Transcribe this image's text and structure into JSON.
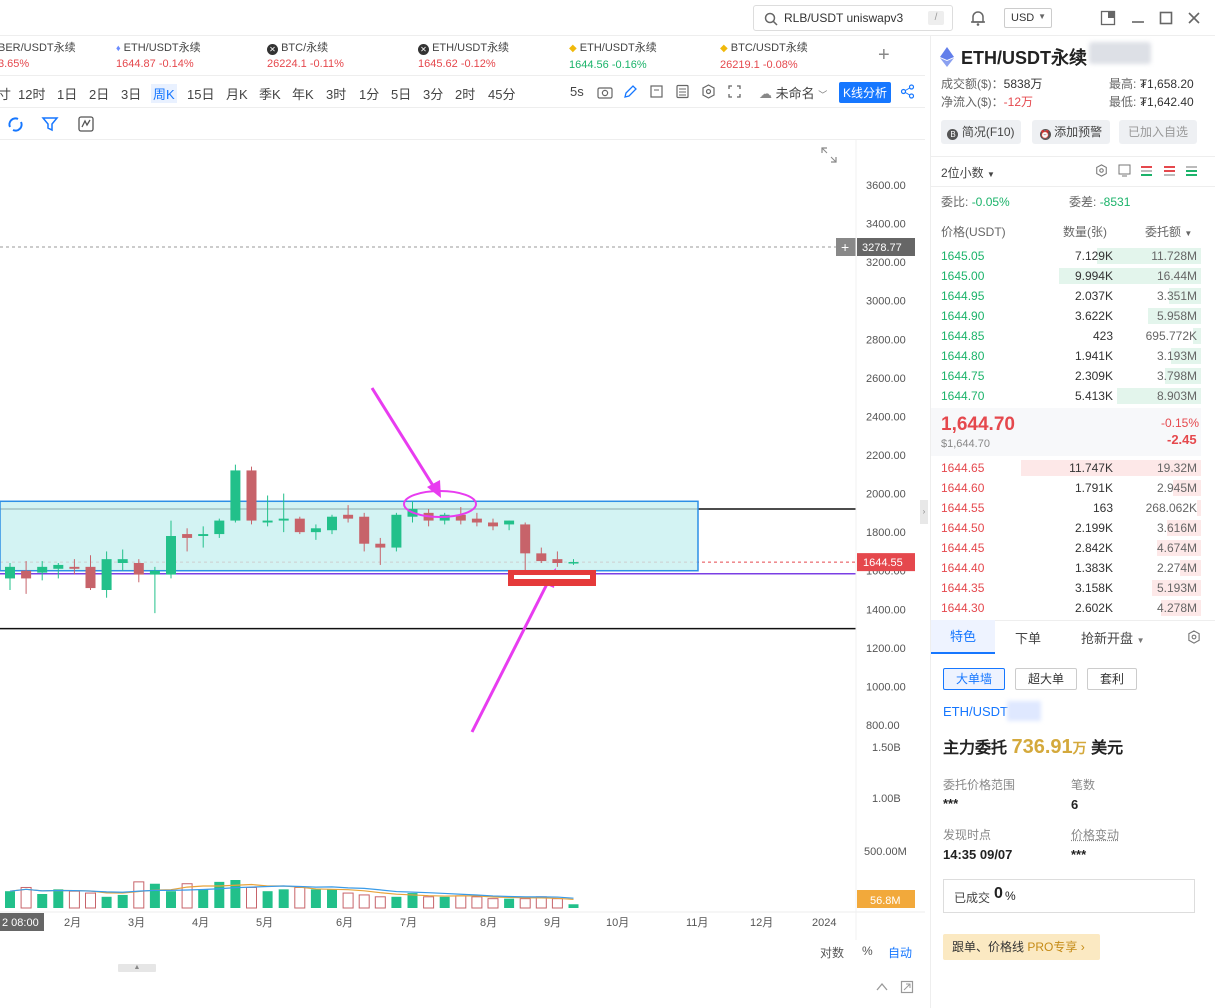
{
  "topbar": {
    "search_value": "RLB/USDT uniswapv3",
    "search_shortcut": "/",
    "currency": "USD"
  },
  "tickers": [
    {
      "name": "BER/USDT永续",
      "price": "",
      "change": "3.65%",
      "color": "red"
    },
    {
      "name": "ETH/USDT永续",
      "price": "1644.87",
      "change": "-0.14%",
      "color": "red"
    },
    {
      "name": "BTC/永续",
      "price": "26224.1",
      "change": "-0.11%",
      "color": "red"
    },
    {
      "name": "ETH/USDT永续",
      "price": "1645.62",
      "change": "-0.12%",
      "color": "red"
    },
    {
      "name": "ETH/USDT永续",
      "price": "1644.56",
      "change": "-0.16%",
      "color": "green"
    },
    {
      "name": "BTC/USDT永续",
      "price": "26219.1",
      "change": "-0.08%",
      "color": "red"
    }
  ],
  "timeframes": [
    "寸",
    "12时",
    "1日",
    "2日",
    "3日",
    "周K",
    "15日",
    "月K",
    "季K",
    "年K",
    "3时",
    "1分",
    "5日",
    "3分",
    "2时",
    "45分"
  ],
  "active_timeframe": "周K",
  "toolbar": {
    "interval_5s": "5s",
    "unnamed": "未命名",
    "kline_analysis": "K线分析"
  },
  "chart": {
    "y_ticks": [
      "3600.00",
      "3400.00",
      "3200.00",
      "3000.00",
      "2800.00",
      "2600.00",
      "2400.00",
      "2200.00",
      "2000.00",
      "1800.00",
      "1600.00",
      "1400.00",
      "1200.00",
      "1000.00",
      "800.00"
    ],
    "vol_ticks": [
      "1.50B",
      "1.00B",
      "500.00M"
    ],
    "x_labels": [
      "2 08:00",
      "2月",
      "3月",
      "4月",
      "5月",
      "6月",
      "7月",
      "8月",
      "9月",
      "10月",
      "11月",
      "12月",
      "2024"
    ],
    "price_line_label": "3278.77",
    "current_price_label": "1644.55",
    "volume_label": "56.8M",
    "bottom_controls": {
      "log": "对数",
      "percent": "%",
      "auto": "自动"
    }
  },
  "chart_data": {
    "type": "candlestick",
    "ylim": [
      700,
      3700
    ],
    "candles": [
      {
        "o": 1560,
        "h": 1640,
        "l": 1500,
        "c": 1620
      },
      {
        "o": 1600,
        "h": 1650,
        "l": 1480,
        "c": 1560
      },
      {
        "o": 1590,
        "h": 1650,
        "l": 1550,
        "c": 1620
      },
      {
        "o": 1610,
        "h": 1640,
        "l": 1560,
        "c": 1630
      },
      {
        "o": 1620,
        "h": 1660,
        "l": 1580,
        "c": 1610
      },
      {
        "o": 1620,
        "h": 1680,
        "l": 1500,
        "c": 1510
      },
      {
        "o": 1500,
        "h": 1700,
        "l": 1460,
        "c": 1660
      },
      {
        "o": 1640,
        "h": 1710,
        "l": 1600,
        "c": 1660
      },
      {
        "o": 1640,
        "h": 1660,
        "l": 1540,
        "c": 1580
      },
      {
        "o": 1580,
        "h": 1620,
        "l": 1380,
        "c": 1600
      },
      {
        "o": 1580,
        "h": 1860,
        "l": 1560,
        "c": 1780
      },
      {
        "o": 1790,
        "h": 1820,
        "l": 1700,
        "c": 1770
      },
      {
        "o": 1780,
        "h": 1830,
        "l": 1720,
        "c": 1790
      },
      {
        "o": 1790,
        "h": 1870,
        "l": 1770,
        "c": 1860
      },
      {
        "o": 1860,
        "h": 2150,
        "l": 1850,
        "c": 2120
      },
      {
        "o": 2120,
        "h": 2140,
        "l": 1840,
        "c": 1860
      },
      {
        "o": 1850,
        "h": 1990,
        "l": 1830,
        "c": 1860
      },
      {
        "o": 1860,
        "h": 2000,
        "l": 1800,
        "c": 1870
      },
      {
        "o": 1870,
        "h": 1880,
        "l": 1790,
        "c": 1800
      },
      {
        "o": 1800,
        "h": 1840,
        "l": 1760,
        "c": 1820
      },
      {
        "o": 1810,
        "h": 1890,
        "l": 1790,
        "c": 1880
      },
      {
        "o": 1890,
        "h": 1940,
        "l": 1850,
        "c": 1870
      },
      {
        "o": 1880,
        "h": 1900,
        "l": 1700,
        "c": 1740
      },
      {
        "o": 1740,
        "h": 1770,
        "l": 1630,
        "c": 1720
      },
      {
        "o": 1720,
        "h": 1900,
        "l": 1700,
        "c": 1890
      },
      {
        "o": 1880,
        "h": 1960,
        "l": 1850,
        "c": 1920
      },
      {
        "o": 1900,
        "h": 1920,
        "l": 1830,
        "c": 1860
      },
      {
        "o": 1860,
        "h": 1900,
        "l": 1840,
        "c": 1890
      },
      {
        "o": 1890,
        "h": 1930,
        "l": 1840,
        "c": 1860
      },
      {
        "o": 1870,
        "h": 1900,
        "l": 1830,
        "c": 1850
      },
      {
        "o": 1850,
        "h": 1870,
        "l": 1810,
        "c": 1830
      },
      {
        "o": 1840,
        "h": 1860,
        "l": 1810,
        "c": 1860
      },
      {
        "o": 1840,
        "h": 1850,
        "l": 1540,
        "c": 1690
      },
      {
        "o": 1690,
        "h": 1720,
        "l": 1640,
        "c": 1650
      },
      {
        "o": 1660,
        "h": 1700,
        "l": 1620,
        "c": 1640
      },
      {
        "o": 1640,
        "h": 1660,
        "l": 1630,
        "c": 1645
      }
    ],
    "volumes": [
      0.18,
      0.22,
      0.15,
      0.2,
      0.18,
      0.16,
      0.12,
      0.14,
      0.28,
      0.26,
      0.18,
      0.26,
      0.2,
      0.28,
      0.3,
      0.22,
      0.18,
      0.2,
      0.22,
      0.2,
      0.2,
      0.16,
      0.14,
      0.12,
      0.12,
      0.16,
      0.12,
      0.12,
      0.13,
      0.12,
      0.1,
      0.1,
      0.1,
      0.12,
      0.1,
      0.04
    ],
    "volume_ylim": [
      0,
      1.8
    ],
    "horizontal_lines": [
      1920,
      1300,
      3278.77
    ],
    "box": {
      "y_top": 1960,
      "y_bottom": 1600
    }
  },
  "right": {
    "title": "ETH/USDT永续",
    "turnover_label": "成交额($)：",
    "turnover": "5838万",
    "netflow_label": "净流入($)：",
    "netflow": "-12万",
    "high_label": "最高:",
    "high": "₮1,658.20",
    "low_label": "最低:",
    "low": "₮1,642.40",
    "btn_overview": "简况(F10)",
    "btn_alert": "添加预警",
    "btn_watch": "已加入自选",
    "decimals": "2位小数",
    "ratio_label": "委比:",
    "ratio": "-0.05%",
    "diff_label": "委差:",
    "diff": "-8531",
    "col_price": "价格(USDT)",
    "col_qty": "数量(张)",
    "col_amount": "委托额",
    "asks": [
      {
        "price": "1645.05",
        "qty": "7.129K",
        "amt": "11.728M",
        "w": 0.55
      },
      {
        "price": "1645.00",
        "qty": "9.994K",
        "amt": "16.44M",
        "w": 0.75
      },
      {
        "price": "1644.95",
        "qty": "2.037K",
        "amt": "3.351M",
        "w": 0.17
      },
      {
        "price": "1644.90",
        "qty": "3.622K",
        "amt": "5.958M",
        "w": 0.28
      },
      {
        "price": "1644.85",
        "qty": "423",
        "amt": "695.772K",
        "w": 0.04
      },
      {
        "price": "1644.80",
        "qty": "1.941K",
        "amt": "3.193M",
        "w": 0.16
      },
      {
        "price": "1644.75",
        "qty": "2.309K",
        "amt": "3.798M",
        "w": 0.19
      },
      {
        "price": "1644.70",
        "qty": "5.413K",
        "amt": "8.903M",
        "w": 0.44
      }
    ],
    "last_price": "1,644.70",
    "last_price_usd": "$1,644.70",
    "last_change_pct": "-0.15%",
    "last_change": "-2.45",
    "bids": [
      {
        "price": "1644.65",
        "qty": "11.747K",
        "amt": "19.32M",
        "w": 0.95
      },
      {
        "price": "1644.60",
        "qty": "1.791K",
        "amt": "2.945M",
        "w": 0.15
      },
      {
        "price": "1644.55",
        "qty": "163",
        "amt": "268.062K",
        "w": 0.02
      },
      {
        "price": "1644.50",
        "qty": "2.199K",
        "amt": "3.616M",
        "w": 0.18
      },
      {
        "price": "1644.45",
        "qty": "2.842K",
        "amt": "4.674M",
        "w": 0.23
      },
      {
        "price": "1644.40",
        "qty": "1.383K",
        "amt": "2.274M",
        "w": 0.11
      },
      {
        "price": "1644.35",
        "qty": "3.158K",
        "amt": "5.193M",
        "w": 0.26
      },
      {
        "price": "1644.30",
        "qty": "2.602K",
        "amt": "4.278M",
        "w": 0.21
      }
    ],
    "tabs": [
      "特色",
      "下单",
      "抢新开盘"
    ],
    "chips": [
      "大单墙",
      "超大单",
      "套利"
    ],
    "pair": "ETH/USDT",
    "main_label": "主力委托",
    "main_value": "736.91",
    "main_unit": "万",
    "main_currency": "美元",
    "range_label": "委托价格范围",
    "range_value": "***",
    "count_label": "笔数",
    "count_value": "6",
    "found_label": "发现时点",
    "found_value": "14:35 09/07",
    "pchange_label": "价格变动",
    "pchange_value": "***",
    "filled_label": "已成交",
    "filled_value": "0",
    "filled_unit": "%",
    "pro_label": "跟单、价格线",
    "pro_tag": "PRO专享"
  }
}
